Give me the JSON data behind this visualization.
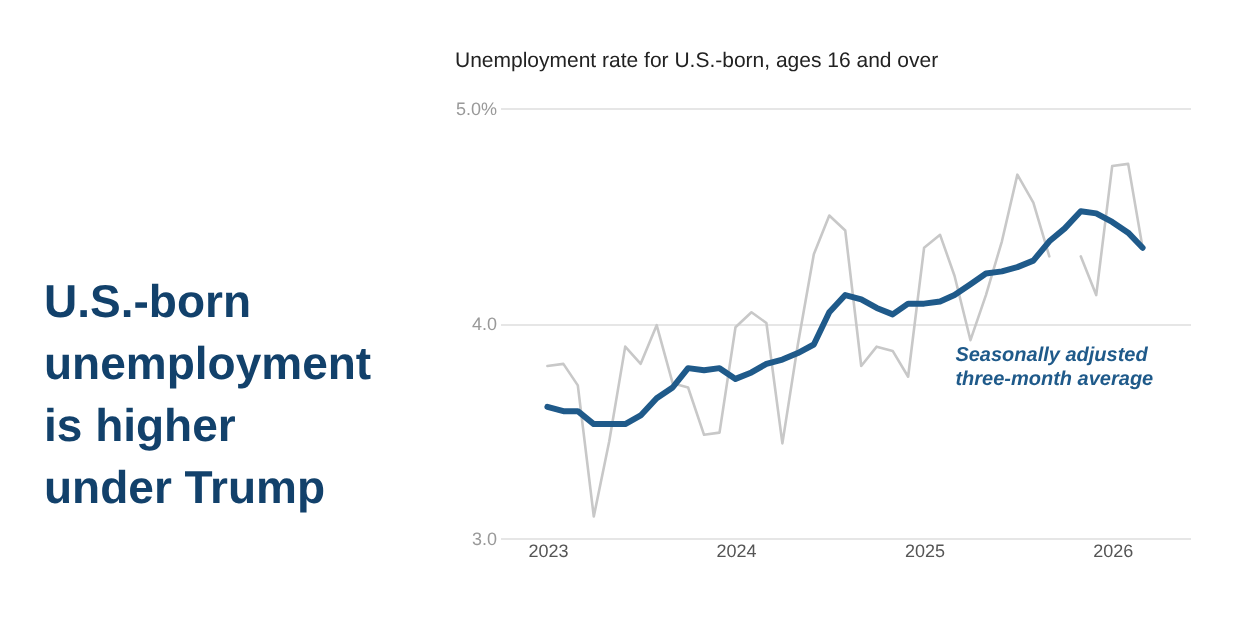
{
  "chart_data": {
    "type": "line",
    "title": "U.S.-born unemployment is higher under Trump",
    "subtitle": "Unemployment rate for U.S.-born, ages 16 and over",
    "x": [
      "2023-01",
      "2023-02",
      "2023-03",
      "2023-04",
      "2023-05",
      "2023-06",
      "2023-07",
      "2023-08",
      "2023-09",
      "2023-10",
      "2023-11",
      "2023-12",
      "2024-01",
      "2024-02",
      "2024-03",
      "2024-04",
      "2024-05",
      "2024-06",
      "2024-07",
      "2024-08",
      "2024-09",
      "2024-10",
      "2024-11",
      "2024-12",
      "2025-01",
      "2025-02",
      "2025-03",
      "2025-04",
      "2025-05",
      "2025-06",
      "2025-07",
      "2025-08",
      "2025-09",
      "2025-10",
      "2025-11",
      "2025-12",
      "2026-01",
      "2026-02",
      "2026-03"
    ],
    "series": [
      {
        "color": "#c8c8c8",
        "values": [
          3.8,
          3.81,
          3.71,
          3.1,
          3.45,
          3.89,
          3.81,
          3.99,
          3.72,
          3.7,
          3.48,
          3.49,
          3.98,
          4.05,
          4.0,
          3.44,
          3.9,
          4.32,
          4.5,
          4.43,
          3.8,
          3.89,
          3.87,
          3.75,
          4.35,
          4.41,
          4.22,
          3.92,
          4.13,
          4.38,
          4.69,
          4.56,
          4.31,
          null,
          4.31,
          4.13,
          4.73,
          4.74,
          4.35
        ]
      },
      {
        "color": "#1f5a8a",
        "values": [
          3.61,
          3.59,
          3.59,
          3.53,
          3.53,
          3.53,
          3.57,
          3.65,
          3.7,
          3.79,
          3.78,
          3.79,
          3.74,
          3.77,
          3.81,
          3.83,
          3.86,
          3.9,
          4.05,
          4.13,
          4.11,
          4.07,
          4.04,
          4.09,
          4.09,
          4.1,
          4.13,
          4.18,
          4.23,
          4.24,
          4.26,
          4.29,
          4.38,
          4.44,
          4.52,
          4.51,
          4.47,
          4.42,
          4.35
        ]
      }
    ],
    "xlim": [
      "2022-10",
      "2026-06"
    ],
    "xticks": [
      "2023",
      "2024",
      "2025",
      "2026"
    ],
    "ylim": [
      3,
      5
    ],
    "yticks": [
      {
        "value": 3,
        "label": "3.0"
      },
      {
        "value": 4,
        "label": "4.0"
      },
      {
        "value": 5,
        "label": "5.0%"
      }
    ],
    "grid": "y",
    "marker": "none",
    "line_style": "solid",
    "annotations": [
      "Seasonally adjusted three-month average"
    ]
  }
}
